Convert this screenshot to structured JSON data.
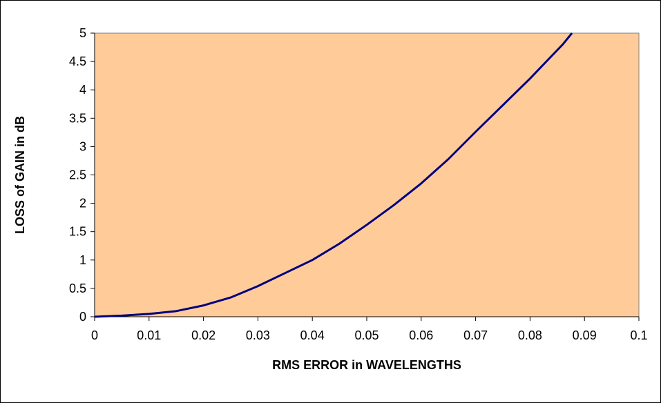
{
  "chart_data": {
    "type": "line",
    "title": "",
    "xlabel": "RMS ERROR in WAVELENGTHS",
    "ylabel": "LOSS of GAIN in dB",
    "xlim": [
      0,
      0.1
    ],
    "ylim": [
      0,
      5
    ],
    "x_ticks": [
      "0",
      "0.01",
      "0.02",
      "0.03",
      "0.04",
      "0.05",
      "0.06",
      "0.07",
      "0.08",
      "0.09",
      "0.1"
    ],
    "y_ticks": [
      "0",
      "0.5",
      "1",
      "1.5",
      "2",
      "2.5",
      "3",
      "3.5",
      "4",
      "4.5",
      "5"
    ],
    "grid": false,
    "legend": "none",
    "plot_background": "#FFCC99",
    "line_color": "#000080",
    "series": [
      {
        "x": [
          0,
          0.005,
          0.01,
          0.015,
          0.02,
          0.025,
          0.03,
          0.035,
          0.04,
          0.045,
          0.05,
          0.055,
          0.06,
          0.065,
          0.07,
          0.075,
          0.08,
          0.083,
          0.086,
          0.0877
        ],
        "values": [
          0,
          0.02,
          0.05,
          0.1,
          0.2,
          0.34,
          0.54,
          0.77,
          1.0,
          1.29,
          1.62,
          1.97,
          2.35,
          2.78,
          3.26,
          3.73,
          4.2,
          4.5,
          4.8,
          5.0
        ]
      }
    ]
  }
}
